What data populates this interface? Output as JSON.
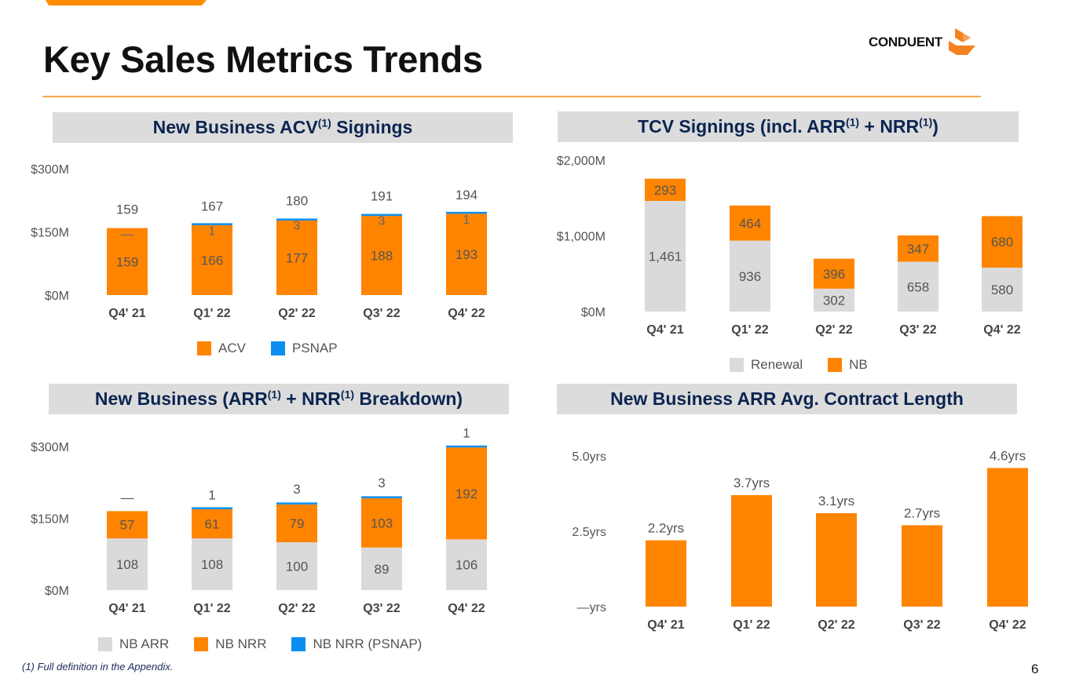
{
  "page": {
    "title": "Key Sales Metrics Trends",
    "logo_text": "CONDUENT",
    "footnote": "(1) Full definition in the Appendix.",
    "page_number": "6"
  },
  "colors": {
    "orange": "#ff8400",
    "blue": "#0a8ff0",
    "gray": "#dadada",
    "navy": "#0b2551",
    "label": "#555555"
  },
  "panels": [
    {
      "title_parts": [
        "New Business ACV",
        "(1)",
        " Signings"
      ]
    },
    {
      "title_parts": [
        "TCV Signings (incl. ARR",
        "(1)",
        " + NRR",
        "(1)",
        ")"
      ]
    },
    {
      "title_parts": [
        "New Business (ARR",
        "(1)",
        " + NRR",
        "(1)",
        " Breakdown)"
      ]
    },
    {
      "title_parts": [
        "New Business ARR Avg. Contract Length"
      ]
    }
  ],
  "chart_data": [
    {
      "type": "bar",
      "stacked": true,
      "title": "New Business ACV(1) Signings",
      "categories": [
        "Q4' 21",
        "Q1' 22",
        "Q2' 22",
        "Q3' 22",
        "Q4' 22"
      ],
      "series": [
        {
          "name": "ACV",
          "color": "#ff8400",
          "values": [
            159,
            166,
            177,
            188,
            193
          ],
          "labels": [
            "159",
            "166",
            "177",
            "188",
            "193"
          ]
        },
        {
          "name": "PSNAP",
          "color": "#0a8ff0",
          "values": [
            0,
            1,
            3,
            3,
            1
          ],
          "labels": [
            "—",
            "1",
            "3",
            "3",
            "1"
          ]
        }
      ],
      "totals": [
        "159",
        "167",
        "180",
        "191",
        "194"
      ],
      "yticks": [
        "$0M",
        "$150M",
        "$300M"
      ],
      "ytick_values": [
        0,
        150,
        300
      ],
      "ylim": [
        0,
        300
      ],
      "legend": "bottom",
      "xlabel": "",
      "ylabel": ""
    },
    {
      "type": "bar",
      "stacked": true,
      "title": "TCV Signings (incl. ARR(1) + NRR(1))",
      "categories": [
        "Q4' 21",
        "Q1' 22",
        "Q2' 22",
        "Q3' 22",
        "Q4' 22"
      ],
      "series": [
        {
          "name": "Renewal",
          "color": "#dadada",
          "values": [
            1461,
            936,
            302,
            658,
            580
          ],
          "labels": [
            "1,461",
            "936",
            "302",
            "658",
            "580"
          ]
        },
        {
          "name": "NB",
          "color": "#ff8400",
          "values": [
            293,
            464,
            396,
            347,
            680
          ],
          "labels": [
            "293",
            "464",
            "396",
            "347",
            "680"
          ]
        }
      ],
      "yticks": [
        "$0M",
        "$1,000M",
        "$2,000M"
      ],
      "ytick_values": [
        0,
        1000,
        2000
      ],
      "ylim": [
        0,
        2000
      ],
      "legend": "bottom",
      "xlabel": "",
      "ylabel": ""
    },
    {
      "type": "bar",
      "stacked": true,
      "title": "New Business (ARR(1) + NRR(1) Breakdown)",
      "categories": [
        "Q4' 21",
        "Q1' 22",
        "Q2' 22",
        "Q3' 22",
        "Q4' 22"
      ],
      "series": [
        {
          "name": "NB ARR",
          "color": "#dadada",
          "values": [
            108,
            108,
            100,
            89,
            106
          ],
          "labels": [
            "108",
            "108",
            "100",
            "89",
            "106"
          ]
        },
        {
          "name": "NB NRR",
          "color": "#ff8400",
          "values": [
            57,
            61,
            79,
            103,
            192
          ],
          "labels": [
            "57",
            "61",
            "79",
            "103",
            "192"
          ]
        },
        {
          "name": "NB NRR (PSNAP)",
          "color": "#0a8ff0",
          "values": [
            0,
            1,
            3,
            3,
            1
          ],
          "labels": [
            "—",
            "1",
            "3",
            "3",
            "1"
          ]
        }
      ],
      "yticks": [
        "$0M",
        "$150M",
        "$300M"
      ],
      "ytick_values": [
        0,
        150,
        300
      ],
      "ylim": [
        0,
        300
      ],
      "legend": "bottom",
      "xlabel": "",
      "ylabel": ""
    },
    {
      "type": "bar",
      "stacked": false,
      "title": "New Business ARR Avg. Contract Length",
      "categories": [
        "Q4' 21",
        "Q1' 22",
        "Q2' 22",
        "Q3' 22",
        "Q4' 22"
      ],
      "series": [
        {
          "name": "Avg. Contract Length (yrs)",
          "color": "#ff8400",
          "values": [
            2.2,
            3.7,
            3.1,
            2.7,
            4.6
          ],
          "labels": [
            "2.2yrs",
            "3.7yrs",
            "3.1yrs",
            "2.7yrs",
            "4.6yrs"
          ]
        }
      ],
      "yticks": [
        "—yrs",
        "2.5yrs",
        "5.0yrs"
      ],
      "ytick_values": [
        0,
        2.5,
        5.0
      ],
      "ylim": [
        0,
        5.0
      ],
      "legend": "none",
      "xlabel": "",
      "ylabel": ""
    }
  ]
}
